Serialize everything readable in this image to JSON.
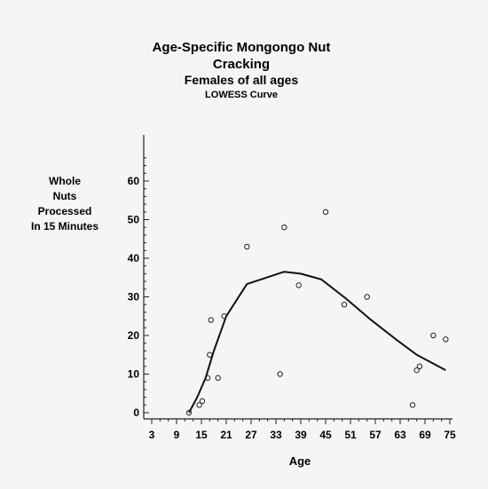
{
  "chart_data": {
    "type": "scatter",
    "title": "Age-Specific Mongongo Nut Cracking",
    "subtitle": "Females of all ages",
    "subtitle2": "LOWESS Curve",
    "ylabel_lines": [
      "Whole",
      "Nuts",
      "Processed",
      "In 15 Minutes"
    ],
    "xlabel": "Age",
    "xlim": [
      3,
      75
    ],
    "ylim": [
      0,
      67
    ],
    "x_ticks": [
      3,
      9,
      15,
      21,
      27,
      33,
      39,
      45,
      51,
      57,
      63,
      69,
      75
    ],
    "y_ticks": [
      0,
      10,
      20,
      30,
      40,
      50,
      60
    ],
    "series": [
      {
        "kind": "points",
        "x": [
          12,
          14.5,
          15.2,
          16.5,
          17,
          17.3,
          19,
          20.5,
          26,
          34,
          35,
          38.5,
          45,
          49.5,
          55,
          66,
          67,
          67.7,
          71,
          74
        ],
        "y": [
          0,
          2,
          3,
          9,
          15,
          24,
          9,
          25,
          43,
          10,
          48,
          33,
          52,
          28,
          30,
          2,
          11,
          12,
          20,
          19
        ]
      },
      {
        "kind": "lowess",
        "x": [
          12,
          14,
          16,
          18,
          21,
          26,
          35,
          39,
          44,
          50,
          56,
          62,
          67,
          74
        ],
        "y": [
          0,
          4,
          9,
          16,
          25,
          33.3,
          36.5,
          36,
          34.5,
          29.5,
          24,
          19,
          15,
          11
        ]
      }
    ]
  }
}
